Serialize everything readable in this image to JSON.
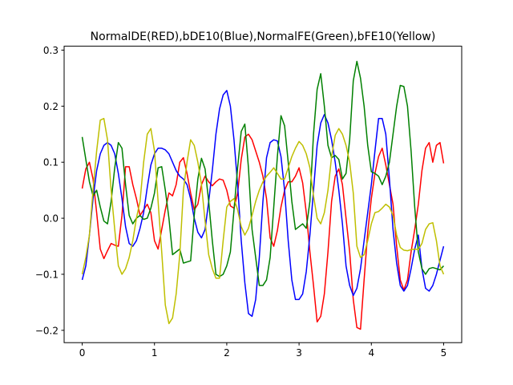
{
  "chart_data": {
    "type": "line",
    "title": "NormalDE(RED),bDE10(Blue),NormalFE(Green),bFE10(Yellow)",
    "xlabel": "",
    "ylabel": "",
    "xlim": [
      -0.25,
      5.25
    ],
    "ylim": [
      -0.222,
      0.307
    ],
    "xticks": [
      0,
      1,
      2,
      3,
      4,
      5
    ],
    "yticks": [
      -0.2,
      -0.1,
      0.0,
      0.1,
      0.2,
      0.3
    ],
    "xtick_labels": [
      "0",
      "1",
      "2",
      "3",
      "4",
      "5"
    ],
    "ytick_labels": [
      "−0.2",
      "−0.1",
      "0.0",
      "0.1",
      "0.2",
      "0.3"
    ],
    "grid": false,
    "x": [
      0.0,
      0.05,
      0.1,
      0.15,
      0.2,
      0.25,
      0.3,
      0.35,
      0.4,
      0.45,
      0.5,
      0.55,
      0.6,
      0.65,
      0.7,
      0.75,
      0.8,
      0.85,
      0.9,
      0.95,
      1.0,
      1.05,
      1.1,
      1.15,
      1.2,
      1.25,
      1.3,
      1.35,
      1.4,
      1.45,
      1.5,
      1.55,
      1.6,
      1.65,
      1.7,
      1.75,
      1.8,
      1.85,
      1.9,
      1.95,
      2.0,
      2.05,
      2.1,
      2.15,
      2.2,
      2.25,
      2.3,
      2.35,
      2.4,
      2.45,
      2.5,
      2.55,
      2.6,
      2.65,
      2.7,
      2.75,
      2.8,
      2.85,
      2.9,
      2.95,
      3.0,
      3.05,
      3.1,
      3.15,
      3.2,
      3.25,
      3.3,
      3.35,
      3.4,
      3.45,
      3.5,
      3.55,
      3.6,
      3.65,
      3.7,
      3.75,
      3.8,
      3.85,
      3.9,
      3.95,
      4.0,
      4.05,
      4.1,
      4.15,
      4.2,
      4.25,
      4.3,
      4.35,
      4.4,
      4.45,
      4.5,
      4.55,
      4.6,
      4.65,
      4.7,
      4.75,
      4.8,
      4.85,
      4.9,
      4.95,
      5.0
    ],
    "series": [
      {
        "color": "#ff0000",
        "values": [
          0.053,
          0.088,
          0.1,
          0.07,
          0.01,
          -0.055,
          -0.072,
          -0.058,
          -0.045,
          -0.048,
          -0.05,
          0.005,
          0.092,
          0.092,
          0.06,
          0.035,
          0.005,
          0.015,
          0.025,
          0.01,
          -0.04,
          -0.055,
          -0.02,
          0.015,
          0.045,
          0.04,
          0.06,
          0.1,
          0.108,
          0.08,
          0.045,
          0.015,
          0.025,
          0.06,
          0.075,
          0.065,
          0.058,
          0.065,
          0.07,
          0.068,
          0.05,
          0.022,
          0.018,
          0.045,
          0.105,
          0.145,
          0.15,
          0.14,
          0.12,
          0.1,
          0.075,
          0.035,
          -0.035,
          -0.05,
          -0.022,
          0.02,
          0.05,
          0.065,
          0.065,
          0.075,
          0.09,
          0.063,
          0.01,
          -0.06,
          -0.12,
          -0.185,
          -0.175,
          -0.135,
          -0.06,
          0.03,
          0.075,
          0.088,
          0.06,
          0.0,
          -0.06,
          -0.145,
          -0.195,
          -0.198,
          -0.11,
          -0.025,
          0.035,
          0.08,
          0.11,
          0.125,
          0.095,
          0.06,
          0.025,
          -0.05,
          -0.11,
          -0.128,
          -0.11,
          -0.06,
          -0.02,
          0.025,
          0.085,
          0.125,
          0.135,
          0.1,
          0.13,
          0.135,
          0.098
        ]
      },
      {
        "color": "#0000ff",
        "values": [
          -0.11,
          -0.085,
          -0.03,
          0.035,
          0.085,
          0.115,
          0.13,
          0.135,
          0.13,
          0.115,
          0.08,
          0.035,
          -0.015,
          -0.045,
          -0.05,
          -0.04,
          -0.018,
          0.01,
          0.055,
          0.095,
          0.115,
          0.125,
          0.125,
          0.122,
          0.115,
          0.1,
          0.085,
          0.075,
          0.07,
          0.06,
          0.035,
          0.0,
          -0.025,
          -0.035,
          -0.02,
          0.03,
          0.085,
          0.15,
          0.195,
          0.22,
          0.228,
          0.2,
          0.14,
          0.06,
          -0.04,
          -0.115,
          -0.17,
          -0.175,
          -0.145,
          -0.07,
          0.03,
          0.108,
          0.135,
          0.14,
          0.138,
          0.11,
          0.05,
          -0.04,
          -0.11,
          -0.145,
          -0.145,
          -0.135,
          -0.095,
          -0.03,
          0.05,
          0.13,
          0.17,
          0.185,
          0.17,
          0.14,
          0.1,
          0.05,
          -0.01,
          -0.085,
          -0.12,
          -0.138,
          -0.125,
          -0.09,
          -0.04,
          0.01,
          0.06,
          0.12,
          0.178,
          0.178,
          0.15,
          0.07,
          -0.02,
          -0.08,
          -0.12,
          -0.13,
          -0.12,
          -0.09,
          -0.055,
          -0.03,
          -0.09,
          -0.125,
          -0.13,
          -0.12,
          -0.1,
          -0.075,
          -0.05
        ]
      },
      {
        "color": "#008000",
        "values": [
          0.145,
          0.105,
          0.065,
          0.04,
          0.05,
          0.02,
          -0.005,
          -0.01,
          0.03,
          0.09,
          0.135,
          0.125,
          0.06,
          0.005,
          -0.01,
          0.0,
          0.005,
          -0.002,
          0.0,
          0.018,
          0.045,
          0.09,
          0.092,
          0.05,
          0.0,
          -0.065,
          -0.06,
          -0.055,
          -0.08,
          -0.078,
          -0.076,
          0.005,
          0.07,
          0.107,
          0.088,
          0.03,
          -0.04,
          -0.1,
          -0.104,
          -0.1,
          -0.085,
          -0.06,
          0.015,
          0.09,
          0.155,
          0.168,
          0.09,
          -0.02,
          -0.07,
          -0.12,
          -0.12,
          -0.11,
          -0.07,
          0.02,
          0.11,
          0.183,
          0.165,
          0.1,
          0.03,
          -0.02,
          -0.015,
          -0.01,
          -0.018,
          0.03,
          0.15,
          0.23,
          0.258,
          0.2,
          0.13,
          0.108,
          0.112,
          0.105,
          0.07,
          0.08,
          0.14,
          0.245,
          0.28,
          0.25,
          0.2,
          0.13,
          0.083,
          0.08,
          0.075,
          0.06,
          0.075,
          0.1,
          0.15,
          0.2,
          0.237,
          0.235,
          0.2,
          0.12,
          0.02,
          -0.06,
          -0.09,
          -0.1,
          -0.09,
          -0.088,
          -0.09,
          -0.092,
          -0.085
        ]
      },
      {
        "color": "#bfbf00",
        "values": [
          -0.1,
          -0.07,
          -0.03,
          0.05,
          0.12,
          0.175,
          0.178,
          0.14,
          0.05,
          -0.02,
          -0.085,
          -0.1,
          -0.09,
          -0.07,
          -0.04,
          0.0,
          0.03,
          0.1,
          0.15,
          0.16,
          0.12,
          0.03,
          -0.06,
          -0.155,
          -0.188,
          -0.178,
          -0.135,
          -0.065,
          0.05,
          0.1,
          0.14,
          0.13,
          0.1,
          0.06,
          -0.005,
          -0.065,
          -0.09,
          -0.107,
          -0.107,
          -0.04,
          0.02,
          0.03,
          0.035,
          0.015,
          -0.015,
          -0.03,
          -0.018,
          0.005,
          0.03,
          0.05,
          0.065,
          0.075,
          0.082,
          0.09,
          0.08,
          0.07,
          0.07,
          0.09,
          0.11,
          0.125,
          0.137,
          0.13,
          0.115,
          0.09,
          0.04,
          0.0,
          -0.01,
          0.01,
          0.05,
          0.11,
          0.148,
          0.16,
          0.15,
          0.13,
          0.1,
          0.045,
          -0.05,
          -0.07,
          -0.065,
          -0.04,
          -0.01,
          0.01,
          0.012,
          0.018,
          0.025,
          0.02,
          0.005,
          -0.03,
          -0.052,
          -0.057,
          -0.058,
          -0.056,
          -0.055,
          -0.056,
          -0.045,
          -0.02,
          -0.01,
          -0.008,
          -0.04,
          -0.085,
          -0.1
        ]
      }
    ]
  }
}
